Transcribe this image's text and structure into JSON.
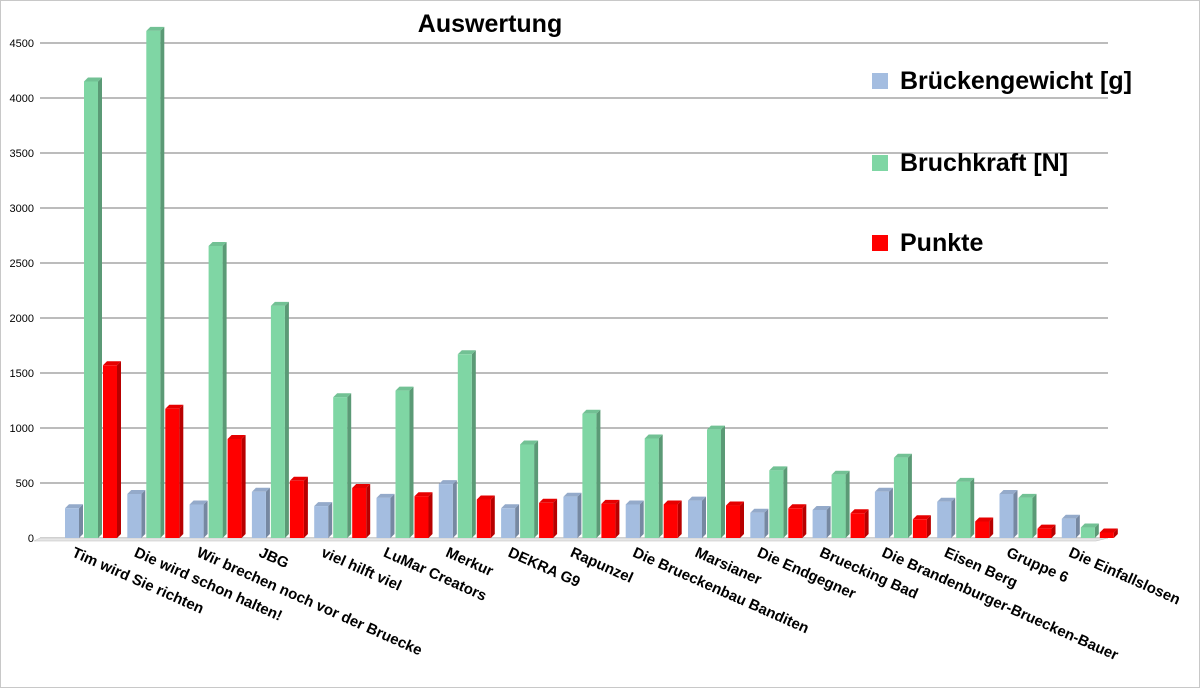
{
  "chart_data": {
    "type": "bar",
    "title": "Auswertung",
    "xlabel": "",
    "ylabel": "",
    "ylim": [
      0,
      4500
    ],
    "yticks": [
      0,
      500,
      1000,
      1500,
      2000,
      2500,
      3000,
      3500,
      4000,
      4500
    ],
    "grid": true,
    "legend_position": "right",
    "categories": [
      "Tim wird Sie richten",
      "Die wird schon halten!",
      "Wir brechen noch vor der Bruecke",
      "JBG",
      "viel hilft viel",
      "LuMar Creators",
      "Merkur",
      "DEKRA G9",
      "Rapunzel",
      "Die Brueckenbau Banditen",
      "Marsianer",
      "Die Endgegner",
      "Bruecking Bad",
      "Die Brandenburger-Bruecken-Bauer",
      "Eisen Berg",
      "Gruppe 6",
      "Die Einfallslosen"
    ],
    "series": [
      {
        "name": "Brückengewicht [g]",
        "color": "#a4bde0",
        "values": [
          270,
          400,
          305,
          420,
          290,
          365,
          490,
          270,
          375,
          305,
          340,
          230,
          255,
          420,
          330,
          400,
          175
        ]
      },
      {
        "name": "Bruchkraft [N]",
        "color": "#7fd6a4",
        "values": [
          4150,
          4610,
          2655,
          2110,
          1280,
          1340,
          1670,
          850,
          1130,
          905,
          985,
          615,
          575,
          730,
          510,
          365,
          95
        ]
      },
      {
        "name": "Punkte",
        "color": "#ff0000",
        "values": [
          1570,
          1175,
          900,
          520,
          455,
          380,
          350,
          320,
          310,
          305,
          295,
          270,
          225,
          170,
          150,
          85,
          50
        ]
      }
    ]
  }
}
